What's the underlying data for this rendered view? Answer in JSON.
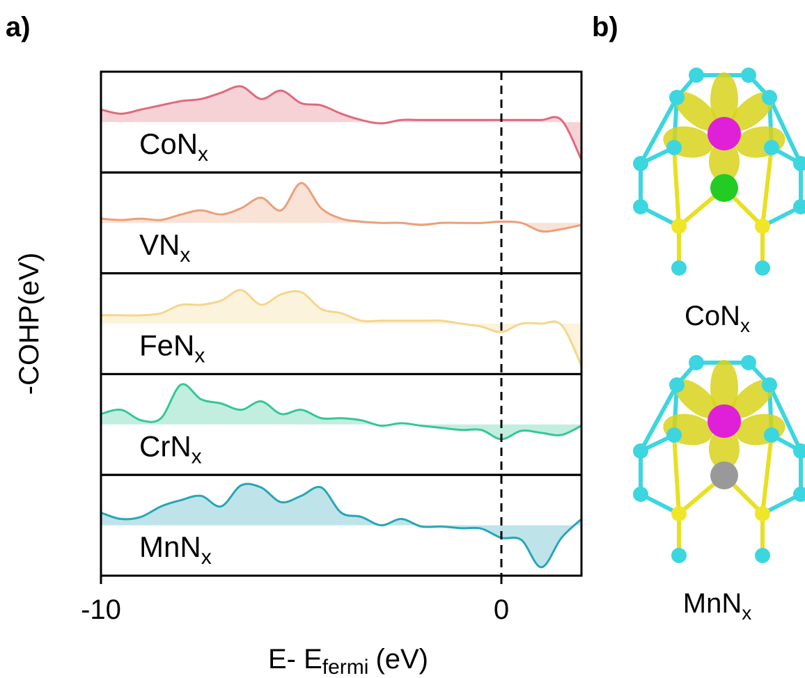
{
  "chart_data": {
    "type": "line",
    "ylabel": "-COHP(eV)",
    "xlabel": {
      "text": "E- E",
      "sub": "fermi",
      "after": "(eV)"
    },
    "xlim": [
      -10,
      2
    ],
    "xticks": [
      -10,
      0
    ],
    "vline": 0,
    "x": [
      -10,
      -9.5,
      -9,
      -8.5,
      -8,
      -7.5,
      -7,
      -6.5,
      -6,
      -5.5,
      -5,
      -4.5,
      -4,
      -3.5,
      -3,
      -2.5,
      -2,
      -1.5,
      -1,
      -0.5,
      0,
      0.5,
      1,
      1.5,
      2
    ],
    "ylim": [
      -1.2,
      1.2
    ],
    "series": [
      {
        "name": "CoN",
        "name_sub": "x",
        "color": "#e06a7c",
        "values": [
          0.3,
          0.2,
          0.3,
          0.4,
          0.5,
          0.55,
          0.7,
          0.85,
          0.55,
          0.75,
          0.45,
          0.4,
          0.2,
          0.05,
          -0.03,
          0.05,
          0.05,
          0.05,
          0.05,
          0.05,
          0.05,
          0.05,
          0.05,
          0.05,
          -0.9
        ]
      },
      {
        "name": "VN",
        "name_sub": "x",
        "color": "#eb9f78",
        "values": [
          0.1,
          0.07,
          0.1,
          0.07,
          0.2,
          0.3,
          0.2,
          0.35,
          0.6,
          0.3,
          0.95,
          0.35,
          0.1,
          0.03,
          0,
          0,
          -0.05,
          0,
          0,
          0,
          0.03,
          0,
          -0.2,
          -0.15,
          -0.05
        ]
      },
      {
        "name": "FeN",
        "name_sub": "x",
        "color": "#f4d68c",
        "values": [
          0.2,
          0.2,
          0.2,
          0.25,
          0.45,
          0.45,
          0.55,
          0.8,
          0.45,
          0.7,
          0.75,
          0.35,
          0.25,
          0.07,
          0.07,
          0.07,
          0.07,
          0.07,
          0,
          -0.07,
          -0.2,
          0,
          0,
          -0.03,
          -1.0
        ]
      },
      {
        "name": "CrN",
        "name_sub": "x",
        "color": "#35c894",
        "values": [
          0.25,
          0.35,
          0.1,
          0.15,
          0.95,
          0.6,
          0.5,
          0.35,
          0.55,
          0.25,
          0.35,
          0.15,
          0.15,
          0.1,
          -0.03,
          0.03,
          -0.03,
          -0.08,
          -0.13,
          -0.13,
          -0.35,
          -0.15,
          -0.2,
          -0.25,
          -0.03
        ]
      },
      {
        "name": "MnN",
        "name_sub": "x",
        "color": "#27a6b6",
        "values": [
          0.3,
          0.15,
          0.2,
          0.45,
          0.6,
          0.7,
          0.45,
          0.95,
          0.9,
          0.55,
          0.7,
          0.9,
          0.3,
          0.2,
          0,
          0.15,
          -0.03,
          -0.03,
          -0.07,
          -0.08,
          -0.3,
          -0.35,
          -1.0,
          -0.3,
          0.15
        ]
      }
    ]
  },
  "figure": {
    "panel_a": "a)",
    "panel_b": "b)",
    "structures": [
      {
        "name": "CoN",
        "sub": "x",
        "center_color": "#22cc22"
      },
      {
        "name": "MnN",
        "sub": "x",
        "center_color": "#999999"
      }
    ]
  }
}
